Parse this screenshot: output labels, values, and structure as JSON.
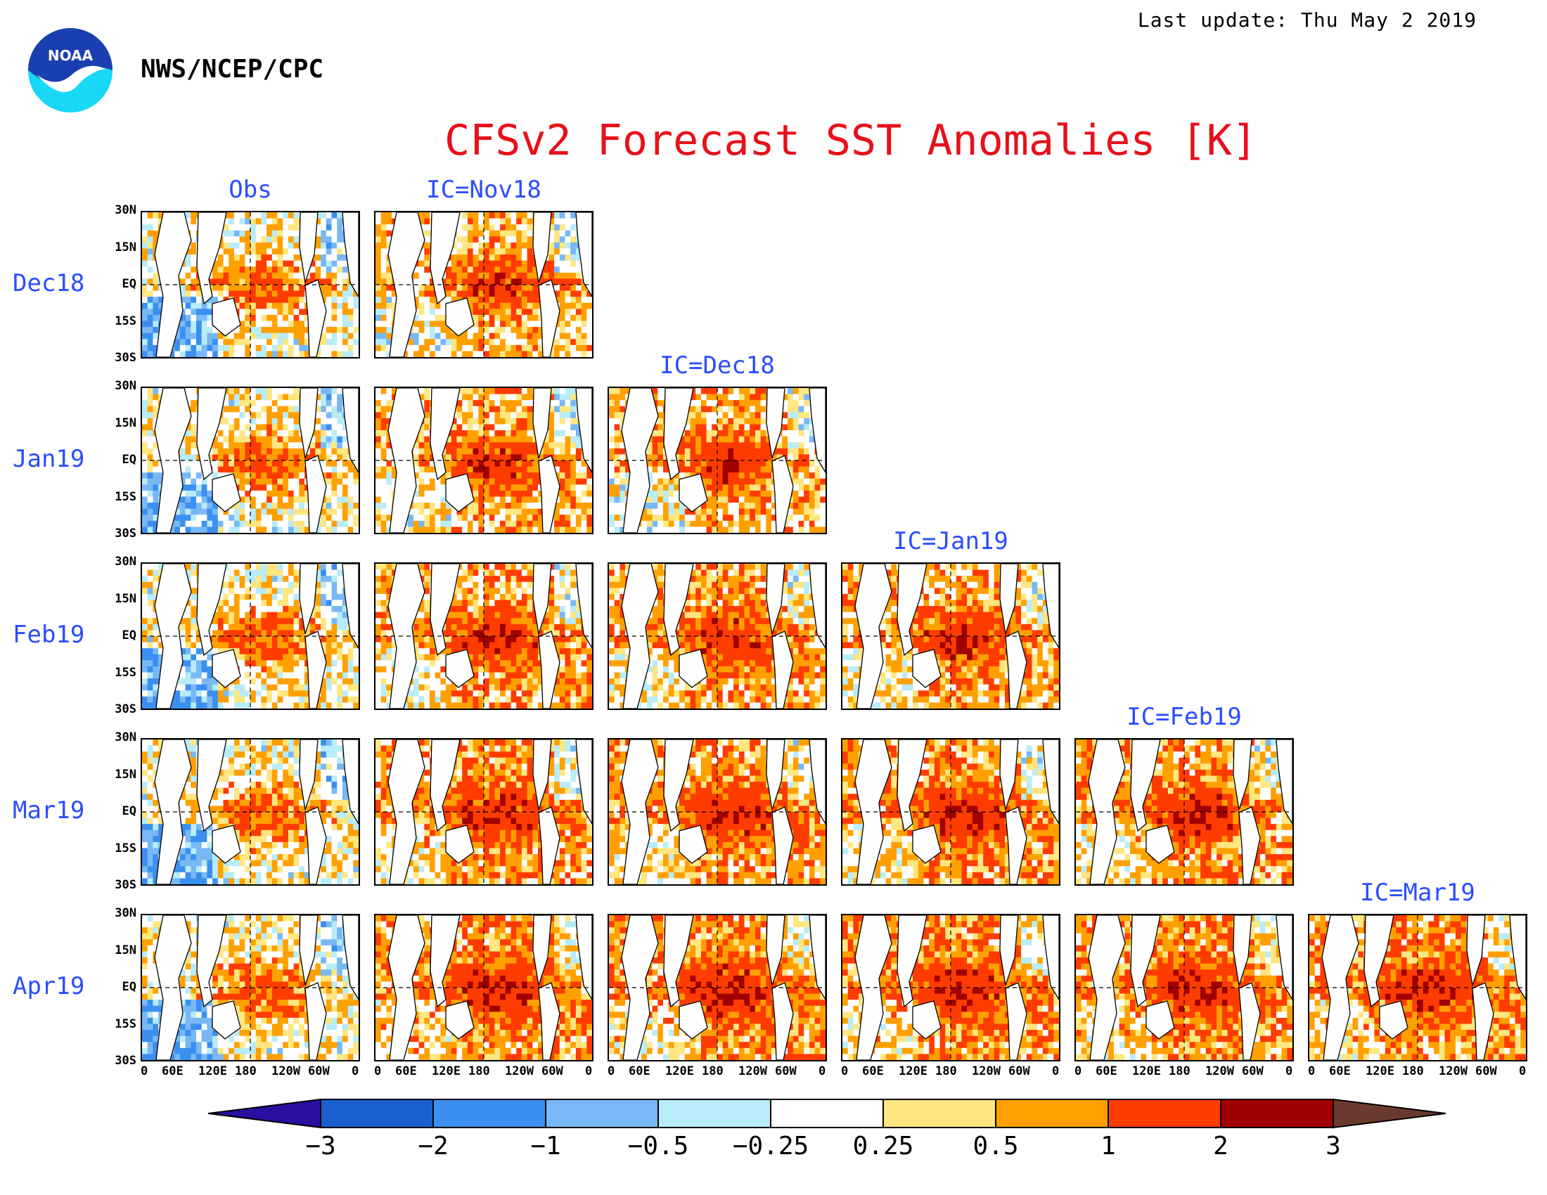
{
  "header": {
    "last_update": "Last update: Thu May 2 2019",
    "org": "NWS/NCEP/CPC",
    "logo_text": "NOAA",
    "title": "CFSv2 Forecast SST Anomalies [K]"
  },
  "columns": [
    "Obs",
    "IC=Nov18",
    "IC=Dec18",
    "IC=Jan19",
    "IC=Feb19",
    "IC=Mar19"
  ],
  "rows": [
    "Dec18",
    "Jan19",
    "Feb19",
    "Mar19",
    "Apr19"
  ],
  "lat_ticks": [
    "30N",
    "15N",
    "EQ",
    "15S",
    "30S"
  ],
  "lon_ticks": [
    "0",
    "60E",
    "120E",
    "180",
    "120W",
    "60W",
    "0"
  ],
  "colors": {
    "title": "#e8101a",
    "labels": "#2a4dff"
  },
  "colorbar": {
    "levels": [
      "−3",
      "−2",
      "−1",
      "−0.5",
      "−0.25",
      "0.25",
      "0.5",
      "1",
      "2",
      "3"
    ],
    "colors": [
      "#2a0fa0",
      "#1a5fd0",
      "#3a8ff0",
      "#78b8f5",
      "#b8ecf8",
      "#ffffff",
      "#ffe680",
      "#ffa000",
      "#ff3c00",
      "#a00000",
      "#6b3a2e"
    ]
  }
}
